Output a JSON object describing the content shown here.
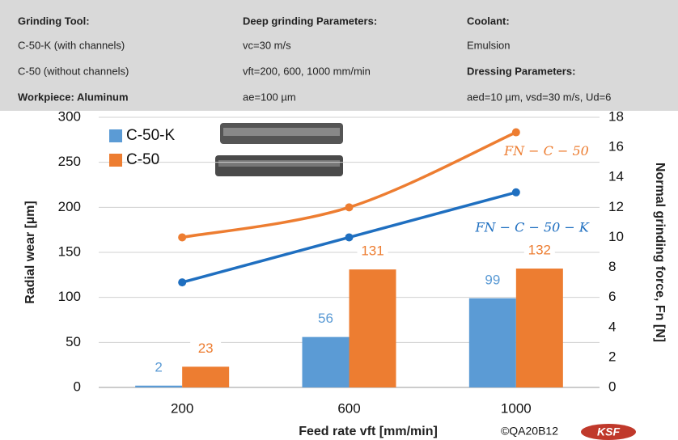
{
  "header": {
    "rows": [
      [
        "Grinding Tool:",
        "Deep grinding Parameters:",
        "Coolant:"
      ],
      [
        "C-50-K (with channels)",
        "vc=30 m/s",
        "Emulsion"
      ],
      [
        "C-50 (without channels)",
        "vft=200,  600, 1000 mm/min",
        "Dressing Parameters:"
      ],
      [
        "Workpiece: Aluminum",
        "ae=100 µm",
        "aed=10 µm, vsd=30 m/s, Ud=6"
      ]
    ]
  },
  "chart_data": {
    "type": "bar",
    "categories": [
      "200",
      "600",
      "1000"
    ],
    "xlabel": "Feed rate vft [mm/min]",
    "ylabel": "Radial wear [µm]",
    "y2label": "Normal grinding force, Fn [N]",
    "ylim": [
      0,
      300
    ],
    "yticks": [
      0,
      50,
      100,
      150,
      200,
      250,
      300
    ],
    "y2lim": [
      0,
      18
    ],
    "y2ticks": [
      0,
      2,
      4,
      6,
      8,
      10,
      12,
      14,
      16,
      18
    ],
    "grid": true,
    "legend": "upper left",
    "series": [
      {
        "name": "C-50-K",
        "color": "#5b9bd5",
        "values": [
          2,
          56,
          99
        ]
      },
      {
        "name": "C-50",
        "color": "#ed7d31",
        "values": [
          23,
          131,
          132
        ]
      },
      {
        "name": "FN − C − 50",
        "color": "#ed7d31",
        "type": "line",
        "axis": "y2",
        "values": [
          10,
          12,
          17
        ]
      },
      {
        "name": "FN − C − 50 − K",
        "color": "#1f6fc0",
        "type": "line",
        "axis": "y2",
        "values": [
          7,
          10,
          13
        ]
      }
    ],
    "footer": "©QA20B12",
    "logo": "KSF"
  }
}
